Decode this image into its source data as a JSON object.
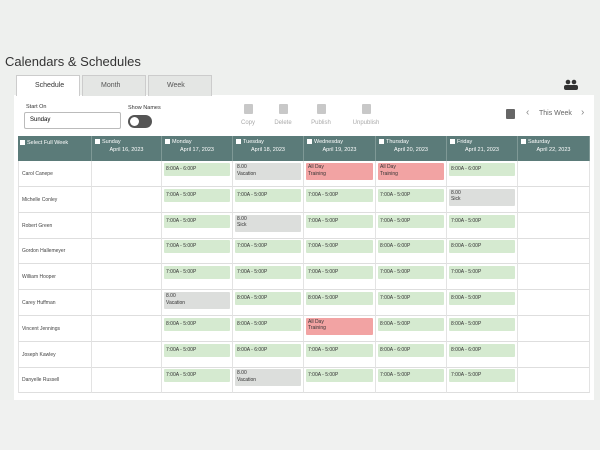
{
  "header": {
    "title": "Calendars & Schedules"
  },
  "tabs": [
    "Schedule",
    "Month",
    "Week"
  ],
  "toolbar": {
    "start_on_label": "Start On",
    "start_on_value": "Sunday",
    "show_names_label": "Show Names",
    "actions": [
      "Copy",
      "Delete",
      "Publish",
      "Unpublish"
    ],
    "week_nav": "This Week"
  },
  "table": {
    "select_all": "Select Full Week",
    "days": [
      {
        "name": "Sunday",
        "date": "April 16, 2023"
      },
      {
        "name": "Monday",
        "date": "April 17, 2023"
      },
      {
        "name": "Tuesday",
        "date": "April 18, 2023"
      },
      {
        "name": "Wednesday",
        "date": "April 19, 2023"
      },
      {
        "name": "Thursday",
        "date": "April 20, 2023"
      },
      {
        "name": "Friday",
        "date": "April 21, 2023"
      },
      {
        "name": "Saturday",
        "date": "April 22, 2023"
      }
    ],
    "rows": [
      {
        "name": "Carol Canepe",
        "shifts": [
          null,
          {
            "lines": [
              "8:00A - 6:00P"
            ],
            "color": "#d5ead0"
          },
          {
            "lines": [
              "8.00",
              "Vacation"
            ],
            "color": "#dcdedc"
          },
          {
            "lines": [
              "All Day",
              "Training"
            ],
            "color": "#f2a3a3"
          },
          {
            "lines": [
              "All Day",
              "Training"
            ],
            "color": "#f2a3a3"
          },
          {
            "lines": [
              "8:00A - 6:00P"
            ],
            "color": "#d5ead0"
          },
          null
        ]
      },
      {
        "name": "Michelle Conley",
        "shifts": [
          null,
          {
            "lines": [
              "7:00A - 5:00P"
            ],
            "color": "#d5ead0"
          },
          {
            "lines": [
              "7:00A - 5:00P"
            ],
            "color": "#d5ead0"
          },
          {
            "lines": [
              "7:00A - 5:00P"
            ],
            "color": "#d5ead0"
          },
          {
            "lines": [
              "7:00A - 5:00P"
            ],
            "color": "#d5ead0"
          },
          {
            "lines": [
              "8.00",
              "Sick"
            ],
            "color": "#dcdedc"
          },
          null
        ]
      },
      {
        "name": "Robert Green",
        "shifts": [
          null,
          {
            "lines": [
              "7:00A - 5:00P"
            ],
            "color": "#d5ead0"
          },
          {
            "lines": [
              "8.00",
              "Sick"
            ],
            "color": "#dcdedc"
          },
          {
            "lines": [
              "7:00A - 5:00P"
            ],
            "color": "#d5ead0"
          },
          {
            "lines": [
              "7:00A - 5:00P"
            ],
            "color": "#d5ead0"
          },
          {
            "lines": [
              "7:00A - 5:00P"
            ],
            "color": "#d5ead0"
          },
          null
        ]
      },
      {
        "name": "Gordon Hallemeyer",
        "shifts": [
          null,
          {
            "lines": [
              "7:00A - 5:00P"
            ],
            "color": "#d5ead0"
          },
          {
            "lines": [
              "7:00A - 5:00P"
            ],
            "color": "#d5ead0"
          },
          {
            "lines": [
              "7:00A - 5:00P"
            ],
            "color": "#d5ead0"
          },
          {
            "lines": [
              "8:00A - 6:00P"
            ],
            "color": "#d5ead0"
          },
          {
            "lines": [
              "8:00A - 6:00P"
            ],
            "color": "#d5ead0"
          },
          null
        ]
      },
      {
        "name": "William Hooper",
        "shifts": [
          null,
          {
            "lines": [
              "7:00A - 5:00P"
            ],
            "color": "#d5ead0"
          },
          {
            "lines": [
              "7:00A - 5:00P"
            ],
            "color": "#d5ead0"
          },
          {
            "lines": [
              "7:00A - 5:00P"
            ],
            "color": "#d5ead0"
          },
          {
            "lines": [
              "7:00A - 5:00P"
            ],
            "color": "#d5ead0"
          },
          {
            "lines": [
              "7:00A - 5:00P"
            ],
            "color": "#d5ead0"
          },
          null
        ]
      },
      {
        "name": "Carey Huffman",
        "shifts": [
          null,
          {
            "lines": [
              "8.00",
              "Vacation"
            ],
            "color": "#dcdedc"
          },
          {
            "lines": [
              "8:00A - 5:00P"
            ],
            "color": "#d5ead0"
          },
          {
            "lines": [
              "8:00A - 5:00P"
            ],
            "color": "#d5ead0"
          },
          {
            "lines": [
              "7:00A - 5:00P"
            ],
            "color": "#d5ead0"
          },
          {
            "lines": [
              "8:00A - 5:00P"
            ],
            "color": "#d5ead0"
          },
          null
        ]
      },
      {
        "name": "Vincent Jennings",
        "shifts": [
          null,
          {
            "lines": [
              "8:00A - 5:00P"
            ],
            "color": "#d5ead0"
          },
          {
            "lines": [
              "8:00A - 5:00P"
            ],
            "color": "#d5ead0"
          },
          {
            "lines": [
              "All Day",
              "Training"
            ],
            "color": "#f2a3a3"
          },
          {
            "lines": [
              "8:00A - 5:00P"
            ],
            "color": "#d5ead0"
          },
          {
            "lines": [
              "8:00A - 5:00P"
            ],
            "color": "#d5ead0"
          },
          null
        ]
      },
      {
        "name": "Joseph Kawley",
        "shifts": [
          null,
          {
            "lines": [
              "7:00A - 5:00P"
            ],
            "color": "#d5ead0"
          },
          {
            "lines": [
              "8:00A - 6:00P"
            ],
            "color": "#d5ead0"
          },
          {
            "lines": [
              "7:00A - 5:00P"
            ],
            "color": "#d5ead0"
          },
          {
            "lines": [
              "8:00A - 6:00P"
            ],
            "color": "#d5ead0"
          },
          {
            "lines": [
              "8:00A - 6:00P"
            ],
            "color": "#d5ead0"
          },
          null
        ]
      },
      {
        "name": "Danyelle Russell",
        "shifts": [
          null,
          {
            "lines": [
              "7:00A - 5:00P"
            ],
            "color": "#d5ead0"
          },
          {
            "lines": [
              "8.00",
              "Vacation"
            ],
            "color": "#dcdedc"
          },
          {
            "lines": [
              "7:00A - 5:00P"
            ],
            "color": "#d5ead0"
          },
          {
            "lines": [
              "7:00A - 5:00P"
            ],
            "color": "#d5ead0"
          },
          {
            "lines": [
              "7:00A - 5:00P"
            ],
            "color": "#d5ead0"
          },
          null
        ]
      }
    ]
  }
}
